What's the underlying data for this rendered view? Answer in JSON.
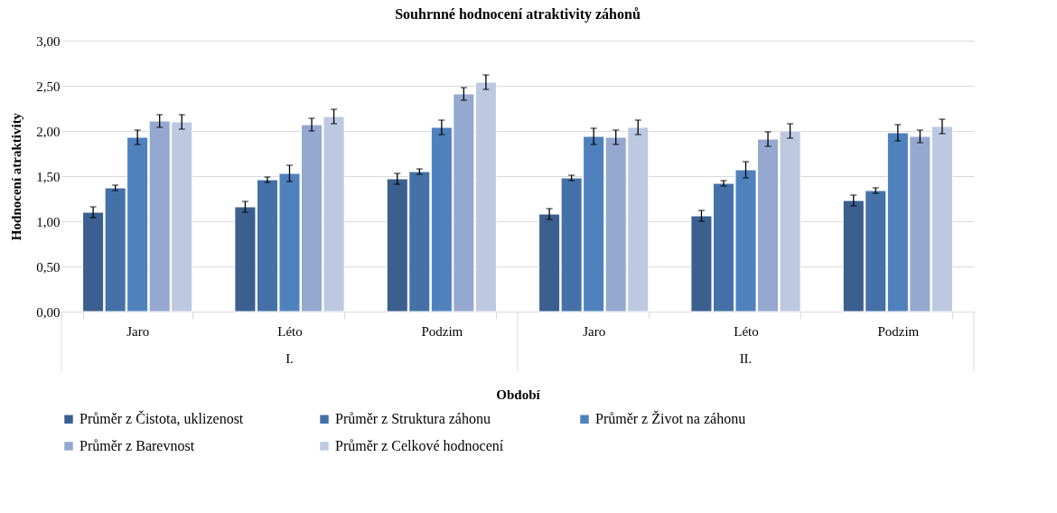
{
  "chart_data": {
    "type": "bar",
    "title": "Souhrnné hodnocení atraktivity záhonů",
    "xlabel": "Období",
    "ylabel": "Hodnocení atraktivity",
    "categories": [
      "Jaro",
      "Léto",
      "Podzim",
      "Jaro",
      "Léto",
      "Podzim"
    ],
    "annotations": [
      "I.",
      "II."
    ],
    "series": [
      {
        "name": "Průměr z Čistota, uklizenost",
        "color": "#3b5f8f",
        "values": [
          1.1,
          1.16,
          1.47,
          1.08,
          1.06,
          1.23
        ],
        "errors": [
          0.06,
          0.06,
          0.06,
          0.06,
          0.06,
          0.06
        ]
      },
      {
        "name": "Průměr z Struktura záhonu",
        "color": "#4472a8",
        "values": [
          1.37,
          1.46,
          1.55,
          1.48,
          1.42,
          1.34
        ],
        "errors": [
          0.03,
          0.03,
          0.03,
          0.03,
          0.03,
          0.03
        ]
      },
      {
        "name": "Průměr z Život na záhonu",
        "color": "#4f81bd",
        "values": [
          1.93,
          1.53,
          2.04,
          1.94,
          1.57,
          1.98
        ],
        "errors": [
          0.08,
          0.09,
          0.08,
          0.09,
          0.09,
          0.09
        ]
      },
      {
        "name": "Průměr z Barevnost",
        "color": "#95a9d0",
        "values": [
          2.11,
          2.07,
          2.41,
          1.93,
          1.91,
          1.94
        ],
        "errors": [
          0.07,
          0.07,
          0.07,
          0.08,
          0.08,
          0.07
        ]
      },
      {
        "name": "Průměr z Celkové hodnocení",
        "color": "#bdc9e1",
        "values": [
          2.1,
          2.16,
          2.54,
          2.04,
          2.0,
          2.05
        ],
        "errors": [
          0.08,
          0.08,
          0.08,
          0.08,
          0.08,
          0.08
        ]
      }
    ],
    "ylim": [
      0,
      3
    ],
    "yticks": [
      {
        "value": 0,
        "label": "0,00"
      },
      {
        "value": 0.5,
        "label": "0,50"
      },
      {
        "value": 1,
        "label": "1,00"
      },
      {
        "value": 1.5,
        "label": "1,50"
      },
      {
        "value": 2,
        "label": "2,00"
      },
      {
        "value": 2.5,
        "label": "2,50"
      },
      {
        "value": 3,
        "label": "3,00"
      }
    ],
    "grid": "y",
    "legend": "bottom"
  }
}
